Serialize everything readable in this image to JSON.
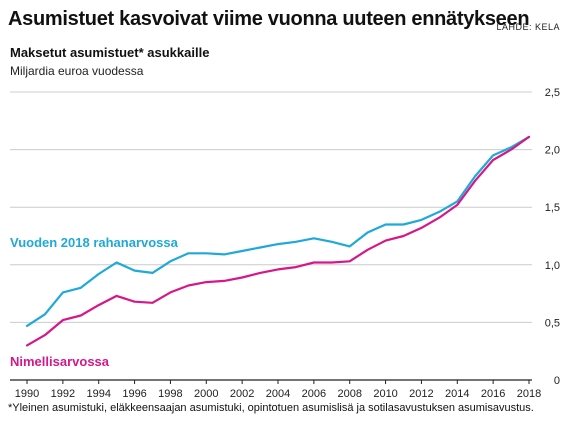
{
  "header": {
    "title": "Asumistuet kasvoivat viime vuonna uuteen ennätykseen",
    "source": "LÄHDE: KELA",
    "subtitle": "Maksetut asumistuet* asukkaille",
    "unit": "Miljardia euroa vuodessa"
  },
  "footnote": "*Yleinen asumistuki, eläkkeensaajan asumistuki, opintotuen asumislisä ja sotilasavustuksen asumisavustus.",
  "colors": {
    "real": "#1fa9d9",
    "nominal": "#d6178a",
    "grid": "#cccccc",
    "axis": "#222222"
  },
  "chart_data": {
    "type": "line",
    "title": "Asumistuet kasvoivat viime vuonna uuteen ennätykseen",
    "subtitle": "Maksetut asumistuet* asukkaille",
    "ylabel": "Miljardia euroa vuodessa",
    "xlabel": "",
    "ylim": [
      0,
      2.5
    ],
    "xlim": [
      1990,
      2018
    ],
    "grid": true,
    "y_ticks": [
      0,
      0.5,
      1.0,
      1.5,
      2.0,
      2.5
    ],
    "y_tick_labels": [
      "0",
      "0,5",
      "1,0",
      "1,5",
      "2,0",
      "2,5"
    ],
    "x_ticks": [
      1990,
      1992,
      1994,
      1996,
      1998,
      2000,
      2002,
      2004,
      2006,
      2008,
      2010,
      2012,
      2014,
      2016,
      2018
    ],
    "x_tick_labels": [
      "1990",
      "1992",
      "1994",
      "1996",
      "1998",
      "2000",
      "2002",
      "2004",
      "2006",
      "2008",
      "2010",
      "2012",
      "2014",
      "2016",
      "2018"
    ],
    "x": [
      1990,
      1991,
      1992,
      1993,
      1994,
      1995,
      1996,
      1997,
      1998,
      1999,
      2000,
      2001,
      2002,
      2003,
      2004,
      2005,
      2006,
      2007,
      2008,
      2009,
      2010,
      2011,
      2012,
      2013,
      2014,
      2015,
      2016,
      2017,
      2018
    ],
    "series": [
      {
        "name": "Vuoden 2018 rahanarvossa",
        "key": "real",
        "values": [
          0.47,
          0.57,
          0.76,
          0.8,
          0.92,
          1.02,
          0.95,
          0.93,
          1.03,
          1.1,
          1.1,
          1.09,
          1.12,
          1.15,
          1.18,
          1.2,
          1.23,
          1.2,
          1.16,
          1.28,
          1.35,
          1.35,
          1.39,
          1.46,
          1.55,
          1.77,
          1.95,
          2.02,
          2.11
        ]
      },
      {
        "name": "Nimellisarvossa",
        "key": "nominal",
        "values": [
          0.3,
          0.39,
          0.52,
          0.56,
          0.65,
          0.73,
          0.68,
          0.67,
          0.76,
          0.82,
          0.85,
          0.86,
          0.89,
          0.93,
          0.96,
          0.98,
          1.02,
          1.02,
          1.03,
          1.13,
          1.21,
          1.25,
          1.32,
          1.41,
          1.52,
          1.73,
          1.91,
          2.0,
          2.11
        ]
      }
    ]
  }
}
